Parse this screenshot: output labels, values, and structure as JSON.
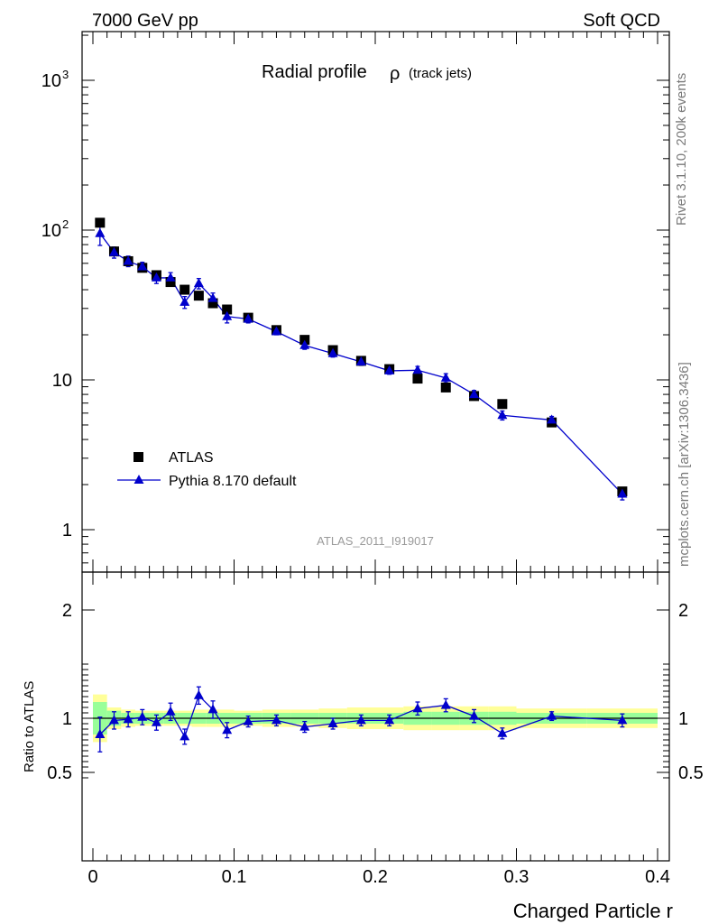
{
  "header": {
    "left": "7000 GeV pp",
    "right": "Soft QCD"
  },
  "side_labels": {
    "rivet": "Rivet 3.1.10,  200k events",
    "mcplots": "mcplots.cern.ch [arXiv:1306.3436]"
  },
  "chart_data": {
    "type": "scatter",
    "title": "Radial profile",
    "title_symbol": "ρ",
    "subtitle": "(track jets)",
    "analysis_tag": "ATLAS_2011_I919017",
    "xlabel": "Charged Particle r",
    "xlim": [
      0,
      0.4
    ],
    "x_ticks": [
      "0",
      "0.1",
      "0.2",
      "0.3",
      "0.4"
    ],
    "main_panel": {
      "yscale": "log",
      "ylim": [
        0.6,
        2000
      ],
      "y_ticks": [
        {
          "value": 1,
          "label": "1",
          "sup": ""
        },
        {
          "value": 10,
          "label": "10",
          "sup": ""
        },
        {
          "value": 100,
          "label": "10",
          "sup": "2"
        },
        {
          "value": 1000,
          "label": "10",
          "sup": "3"
        }
      ],
      "legend_position": "lower-left",
      "series": [
        {
          "name": "ATLAS",
          "marker": "square",
          "color": "#000000",
          "x": [
            0.005,
            0.015,
            0.025,
            0.035,
            0.045,
            0.055,
            0.065,
            0.075,
            0.085,
            0.095,
            0.11,
            0.13,
            0.15,
            0.17,
            0.19,
            0.21,
            0.23,
            0.25,
            0.27,
            0.29,
            0.325,
            0.375
          ],
          "y": [
            112,
            72,
            62,
            56,
            50,
            45,
            40,
            36.5,
            32.5,
            29.5,
            26,
            21.5,
            18.5,
            15.8,
            13.4,
            11.8,
            10.2,
            8.9,
            7.8,
            6.9,
            5.2,
            1.8
          ]
        },
        {
          "name": "Pythia 8.170 default",
          "marker": "triangle",
          "color": "#0000cc",
          "x": [
            0.005,
            0.015,
            0.025,
            0.035,
            0.045,
            0.055,
            0.065,
            0.075,
            0.085,
            0.095,
            0.11,
            0.13,
            0.15,
            0.17,
            0.19,
            0.21,
            0.23,
            0.25,
            0.27,
            0.29,
            0.325,
            0.375
          ],
          "y": [
            95,
            71,
            62,
            57,
            48,
            48,
            33,
            44,
            35,
            26.5,
            25.5,
            21,
            17,
            15,
            13.2,
            11.5,
            11.6,
            10.3,
            8,
            5.8,
            5.4,
            1.73
          ],
          "err_lo": [
            16,
            6,
            5,
            4,
            4,
            4,
            3,
            3.5,
            3,
            2.5,
            1.5,
            1,
            1,
            0.8,
            0.7,
            0.6,
            0.7,
            0.7,
            0.5,
            0.4,
            0.3,
            0.15
          ],
          "err_hi": [
            16,
            6,
            5,
            4,
            4,
            4,
            3,
            3.5,
            3,
            2.5,
            1.5,
            1,
            1,
            0.8,
            0.7,
            0.6,
            0.7,
            0.7,
            0.5,
            0.4,
            0.3,
            0.15
          ]
        }
      ]
    },
    "ratio_panel": {
      "ylabel": "Ratio to ATLAS",
      "ylim": [
        0.42,
        2.35
      ],
      "y_ticks": [
        "0.5",
        "1",
        "2"
      ],
      "reference": 1,
      "band_edges": [
        0,
        0.01,
        0.02,
        0.03,
        0.04,
        0.05,
        0.06,
        0.07,
        0.08,
        0.09,
        0.1,
        0.12,
        0.14,
        0.16,
        0.18,
        0.2,
        0.22,
        0.24,
        0.26,
        0.28,
        0.3,
        0.35,
        0.4
      ],
      "band_inner": [
        0.15,
        0.07,
        0.05,
        0.05,
        0.05,
        0.05,
        0.05,
        0.05,
        0.05,
        0.05,
        0.05,
        0.05,
        0.05,
        0.05,
        0.05,
        0.05,
        0.06,
        0.06,
        0.06,
        0.06,
        0.05,
        0.05
      ],
      "band_outer": [
        0.22,
        0.1,
        0.08,
        0.07,
        0.07,
        0.07,
        0.07,
        0.08,
        0.08,
        0.08,
        0.07,
        0.08,
        0.08,
        0.09,
        0.1,
        0.1,
        0.11,
        0.11,
        0.11,
        0.11,
        0.09,
        0.09
      ],
      "band_colors": {
        "inner": "#99ff99",
        "outer": "#ffff99"
      },
      "series": {
        "name": "Pythia 8.170 default",
        "color": "#0000cc",
        "x": [
          0.005,
          0.015,
          0.025,
          0.035,
          0.045,
          0.055,
          0.065,
          0.075,
          0.085,
          0.095,
          0.11,
          0.13,
          0.15,
          0.17,
          0.19,
          0.21,
          0.23,
          0.25,
          0.27,
          0.29,
          0.325,
          0.375
        ],
        "y": [
          0.85,
          0.98,
          0.99,
          1.01,
          0.96,
          1.06,
          0.83,
          1.21,
          1.08,
          0.89,
          0.97,
          0.98,
          0.92,
          0.95,
          0.98,
          0.98,
          1.09,
          1.12,
          1.02,
          0.86,
          1.02,
          0.98
        ],
        "err_lo": [
          0.16,
          0.08,
          0.07,
          0.07,
          0.07,
          0.08,
          0.07,
          0.08,
          0.08,
          0.07,
          0.05,
          0.05,
          0.05,
          0.05,
          0.05,
          0.05,
          0.06,
          0.06,
          0.06,
          0.05,
          0.04,
          0.06
        ],
        "err_hi": [
          0.16,
          0.08,
          0.07,
          0.07,
          0.07,
          0.08,
          0.07,
          0.08,
          0.08,
          0.07,
          0.05,
          0.05,
          0.05,
          0.05,
          0.05,
          0.05,
          0.06,
          0.06,
          0.06,
          0.05,
          0.04,
          0.06
        ]
      }
    }
  }
}
